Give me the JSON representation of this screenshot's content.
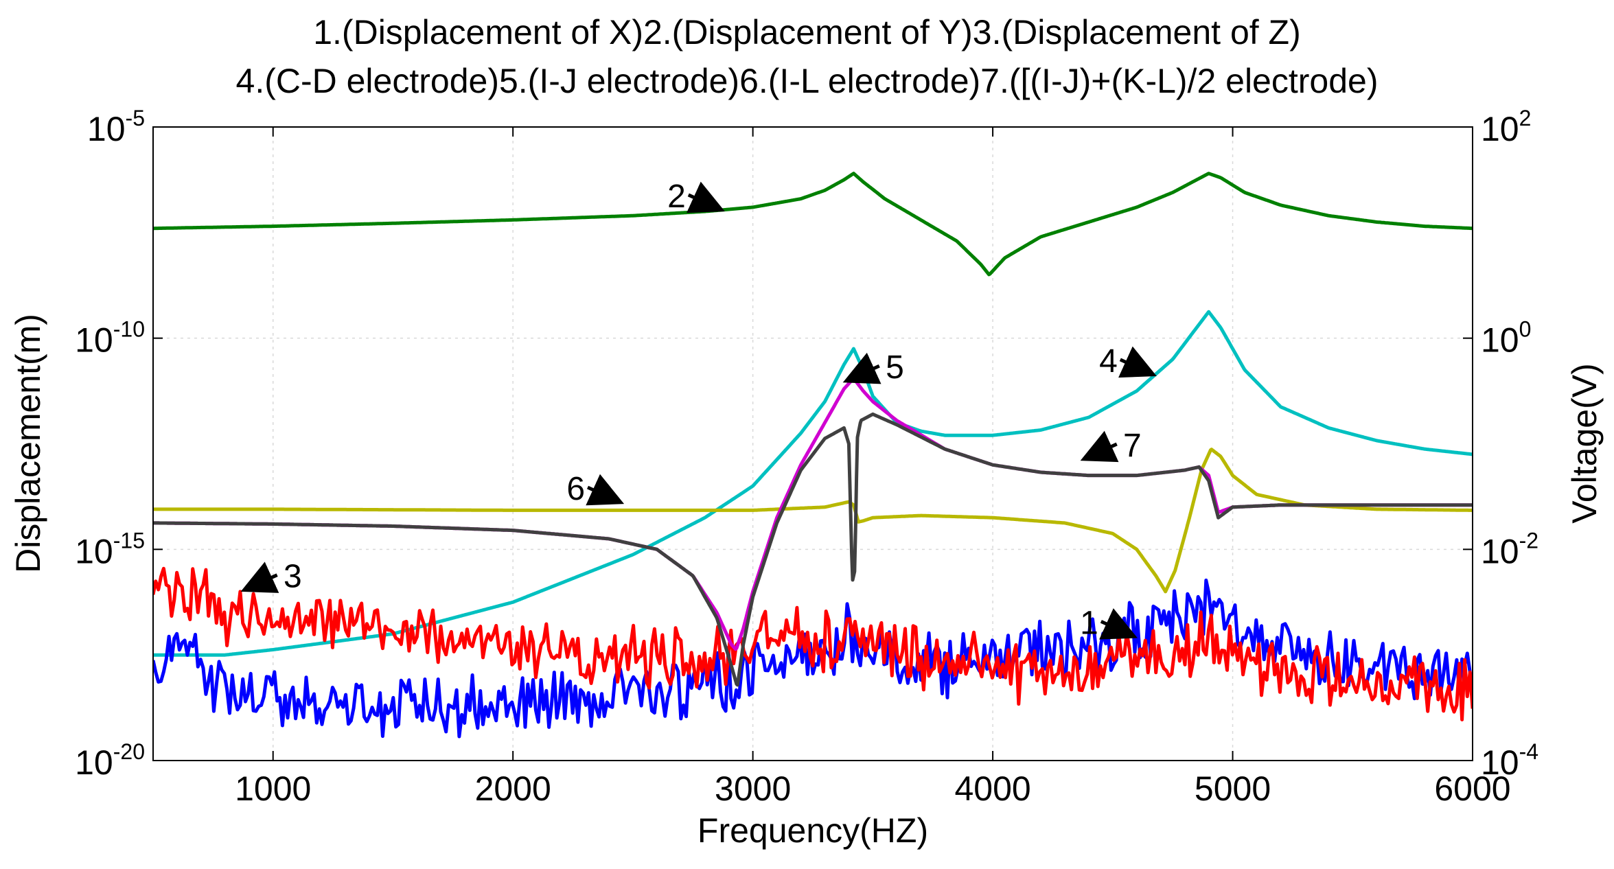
{
  "chart_data": {
    "type": "line",
    "title_lines": [
      "1.(Displacement of X)2.(Displacement of Y)3.(Displacement of Z)",
      "4.(C-D electrode)5.(I-J electrode)6.(I-L electrode)7.([(I-J)+(K-L)/2 electrode)"
    ],
    "xlabel": "Frequency(HZ)",
    "ylabel_left": "Displacement(m)",
    "ylabel_right": "Voltage(V)",
    "xlim": [
      500,
      6000
    ],
    "x_ticks": [
      1000,
      2000,
      3000,
      4000,
      5000,
      6000
    ],
    "y_left_log_range": [
      1e-20,
      1e-05
    ],
    "y_left_ticks": [
      {
        "base": "10",
        "exp": "-5"
      },
      {
        "base": "10",
        "exp": "-10"
      },
      {
        "base": "10",
        "exp": "-15"
      },
      {
        "base": "10",
        "exp": "-20"
      }
    ],
    "y_right_log_range": [
      0.0001,
      100
    ],
    "y_right_ticks": [
      {
        "base": "10",
        "exp": "2"
      },
      {
        "base": "10",
        "exp": "0"
      },
      {
        "base": "10",
        "exp": "-2"
      },
      {
        "base": "10",
        "exp": "-4"
      }
    ],
    "grid": true,
    "series": [
      {
        "id": 1,
        "name": "Displacement of X",
        "axis": "left",
        "color": "#0000ff",
        "noisy": true,
        "x": [
          500,
          600,
          700,
          800,
          900,
          1000,
          1200,
          1400,
          1600,
          1800,
          2000,
          2200,
          2400,
          2600,
          2800,
          2900,
          3000,
          3100,
          3200,
          3300,
          3400,
          3420,
          3500,
          3600,
          3800,
          4000,
          4200,
          4400,
          4600,
          4800,
          4900,
          4950,
          5000,
          5200,
          5400,
          5600,
          5800,
          6000
        ],
        "y_exp": [
          -18.0,
          -17.2,
          -17.8,
          -18.3,
          -18.6,
          -18.4,
          -18.6,
          -18.8,
          -18.8,
          -18.7,
          -18.6,
          -18.5,
          -18.4,
          -18.3,
          -18.2,
          -18.1,
          -17.9,
          -17.7,
          -17.6,
          -17.4,
          -17.0,
          -16.9,
          -17.3,
          -17.6,
          -17.7,
          -17.6,
          -17.4,
          -17.3,
          -17.0,
          -16.6,
          -16.2,
          -16.4,
          -16.8,
          -17.3,
          -17.6,
          -17.8,
          -18.0,
          -18.0
        ]
      },
      {
        "id": 2,
        "name": "Displacement of Y",
        "axis": "left",
        "color": "#008000",
        "noisy": false,
        "x": [
          500,
          1000,
          1500,
          2000,
          2500,
          2800,
          3000,
          3200,
          3300,
          3380,
          3420,
          3460,
          3550,
          3700,
          3850,
          3950,
          3985,
          4050,
          4200,
          4400,
          4600,
          4750,
          4850,
          4900,
          4950,
          5050,
          5200,
          5400,
          5600,
          5800,
          6000
        ],
        "y_exp": [
          -7.4,
          -7.35,
          -7.28,
          -7.2,
          -7.1,
          -7.0,
          -6.9,
          -6.7,
          -6.5,
          -6.25,
          -6.1,
          -6.3,
          -6.7,
          -7.2,
          -7.7,
          -8.25,
          -8.5,
          -8.1,
          -7.6,
          -7.25,
          -6.9,
          -6.55,
          -6.25,
          -6.1,
          -6.2,
          -6.55,
          -6.85,
          -7.1,
          -7.25,
          -7.35,
          -7.4
        ]
      },
      {
        "id": 3,
        "name": "Displacement of Z",
        "axis": "left",
        "color": "#ff0000",
        "noisy": true,
        "x": [
          500,
          600,
          700,
          800,
          900,
          1000,
          1200,
          1400,
          1600,
          1800,
          2000,
          2200,
          2400,
          2600,
          2800,
          2900,
          3000,
          3100,
          3200,
          3300,
          3400,
          3420,
          3500,
          3600,
          3800,
          4000,
          4200,
          4400,
          4600,
          4800,
          4900,
          4950,
          5000,
          5200,
          5400,
          5600,
          5800,
          6000
        ],
        "y_exp": [
          -16.1,
          -15.8,
          -16.0,
          -16.7,
          -16.3,
          -16.6,
          -16.8,
          -16.8,
          -16.9,
          -17.2,
          -17.3,
          -17.5,
          -17.6,
          -17.6,
          -17.5,
          -17.4,
          -17.2,
          -17.1,
          -17.2,
          -17.1,
          -16.9,
          -16.9,
          -17.2,
          -17.5,
          -17.8,
          -17.8,
          -18.0,
          -17.8,
          -17.5,
          -17.3,
          -17.0,
          -17.2,
          -17.5,
          -17.8,
          -18.0,
          -18.2,
          -18.3,
          -18.2
        ]
      },
      {
        "id": 4,
        "name": "C-D electrode",
        "axis": "right",
        "color": "#00c0c0",
        "noisy": false,
        "x": [
          500,
          800,
          1000,
          1500,
          2000,
          2500,
          2800,
          3000,
          3200,
          3300,
          3380,
          3420,
          3460,
          3500,
          3600,
          3700,
          3800,
          4000,
          4200,
          4400,
          4600,
          4750,
          4850,
          4900,
          4950,
          5050,
          5200,
          5400,
          5600,
          5800,
          6000
        ],
        "y_exp": [
          -3.0,
          -3.0,
          -2.95,
          -2.8,
          -2.5,
          -2.05,
          -1.7,
          -1.4,
          -0.9,
          -0.6,
          -0.25,
          -0.1,
          -0.3,
          -0.55,
          -0.8,
          -0.88,
          -0.92,
          -0.92,
          -0.87,
          -0.75,
          -0.5,
          -0.2,
          0.1,
          0.25,
          0.1,
          -0.3,
          -0.65,
          -0.85,
          -0.97,
          -1.05,
          -1.1
        ]
      },
      {
        "id": 5,
        "name": "I-J electrode",
        "axis": "right",
        "color": "#d000d0",
        "noisy": false,
        "x": [
          500,
          1000,
          1500,
          2000,
          2400,
          2600,
          2750,
          2850,
          2910,
          2930,
          2960,
          3000,
          3100,
          3200,
          3300,
          3380,
          3420,
          3460,
          3500,
          3600,
          3800,
          4000,
          4200,
          4400,
          4600,
          4800,
          4860,
          4900,
          4940,
          5000,
          5200,
          5500,
          6000
        ],
        "y_exp": [
          -1.75,
          -1.76,
          -1.78,
          -1.82,
          -1.9,
          -2.0,
          -2.25,
          -2.6,
          -2.9,
          -2.95,
          -2.75,
          -2.4,
          -1.7,
          -1.2,
          -0.8,
          -0.48,
          -0.38,
          -0.5,
          -0.6,
          -0.78,
          -1.05,
          -1.2,
          -1.27,
          -1.3,
          -1.3,
          -1.25,
          -1.22,
          -1.3,
          -1.65,
          -1.6,
          -1.58,
          -1.58,
          -1.58
        ]
      },
      {
        "id": 6,
        "name": "I-L electrode",
        "axis": "right",
        "color": "#b8b800",
        "noisy": false,
        "x": [
          500,
          1000,
          2000,
          3000,
          3300,
          3400,
          3420,
          3440,
          3460,
          3500,
          3700,
          4000,
          4300,
          4500,
          4600,
          4680,
          4720,
          4760,
          4820,
          4870,
          4910,
          4950,
          5000,
          5100,
          5300,
          5600,
          6000
        ],
        "y_exp": [
          -1.62,
          -1.62,
          -1.63,
          -1.63,
          -1.6,
          -1.55,
          -1.58,
          -1.74,
          -1.73,
          -1.7,
          -1.68,
          -1.7,
          -1.75,
          -1.85,
          -2.0,
          -2.25,
          -2.4,
          -2.2,
          -1.7,
          -1.25,
          -1.05,
          -1.12,
          -1.3,
          -1.48,
          -1.58,
          -1.62,
          -1.63
        ]
      },
      {
        "id": 7,
        "name": "[(I-J)+(K-L)/2 electrode",
        "axis": "right",
        "color": "#404040",
        "noisy": false,
        "x": [
          500,
          1000,
          1500,
          2000,
          2400,
          2600,
          2750,
          2850,
          2910,
          2935,
          2960,
          3000,
          3100,
          3200,
          3300,
          3380,
          3400,
          3415,
          3425,
          3435,
          3450,
          3500,
          3600,
          3800,
          4000,
          4200,
          4400,
          4600,
          4800,
          4860,
          4900,
          4940,
          5000,
          5200,
          5500,
          6000
        ],
        "y_exp": [
          -1.75,
          -1.76,
          -1.78,
          -1.82,
          -1.9,
          -2.0,
          -2.25,
          -2.65,
          -3.1,
          -3.3,
          -2.9,
          -2.45,
          -1.75,
          -1.25,
          -0.95,
          -0.85,
          -1.0,
          -2.3,
          -2.2,
          -0.95,
          -0.78,
          -0.72,
          -0.82,
          -1.05,
          -1.2,
          -1.27,
          -1.3,
          -1.3,
          -1.25,
          -1.22,
          -1.35,
          -1.7,
          -1.6,
          -1.58,
          -1.58,
          -1.58
        ]
      }
    ],
    "annotations": [
      {
        "text": "1",
        "x": 4440,
        "y_exp": -17.0,
        "axis": "left"
      },
      {
        "text": "2",
        "x": 2720,
        "y_exp": -6.9,
        "axis": "left"
      },
      {
        "text": "3",
        "x": 1120,
        "y_exp": -15.9,
        "axis": "left"
      },
      {
        "text": "4",
        "x": 4520,
        "y_exp": -0.32,
        "axis": "right"
      },
      {
        "text": "5",
        "x": 3630,
        "y_exp": -0.38,
        "axis": "right"
      },
      {
        "text": "6",
        "x": 2300,
        "y_exp": -1.53,
        "axis": "right"
      },
      {
        "text": "7",
        "x": 4620,
        "y_exp": -1.12,
        "axis": "right"
      }
    ]
  }
}
